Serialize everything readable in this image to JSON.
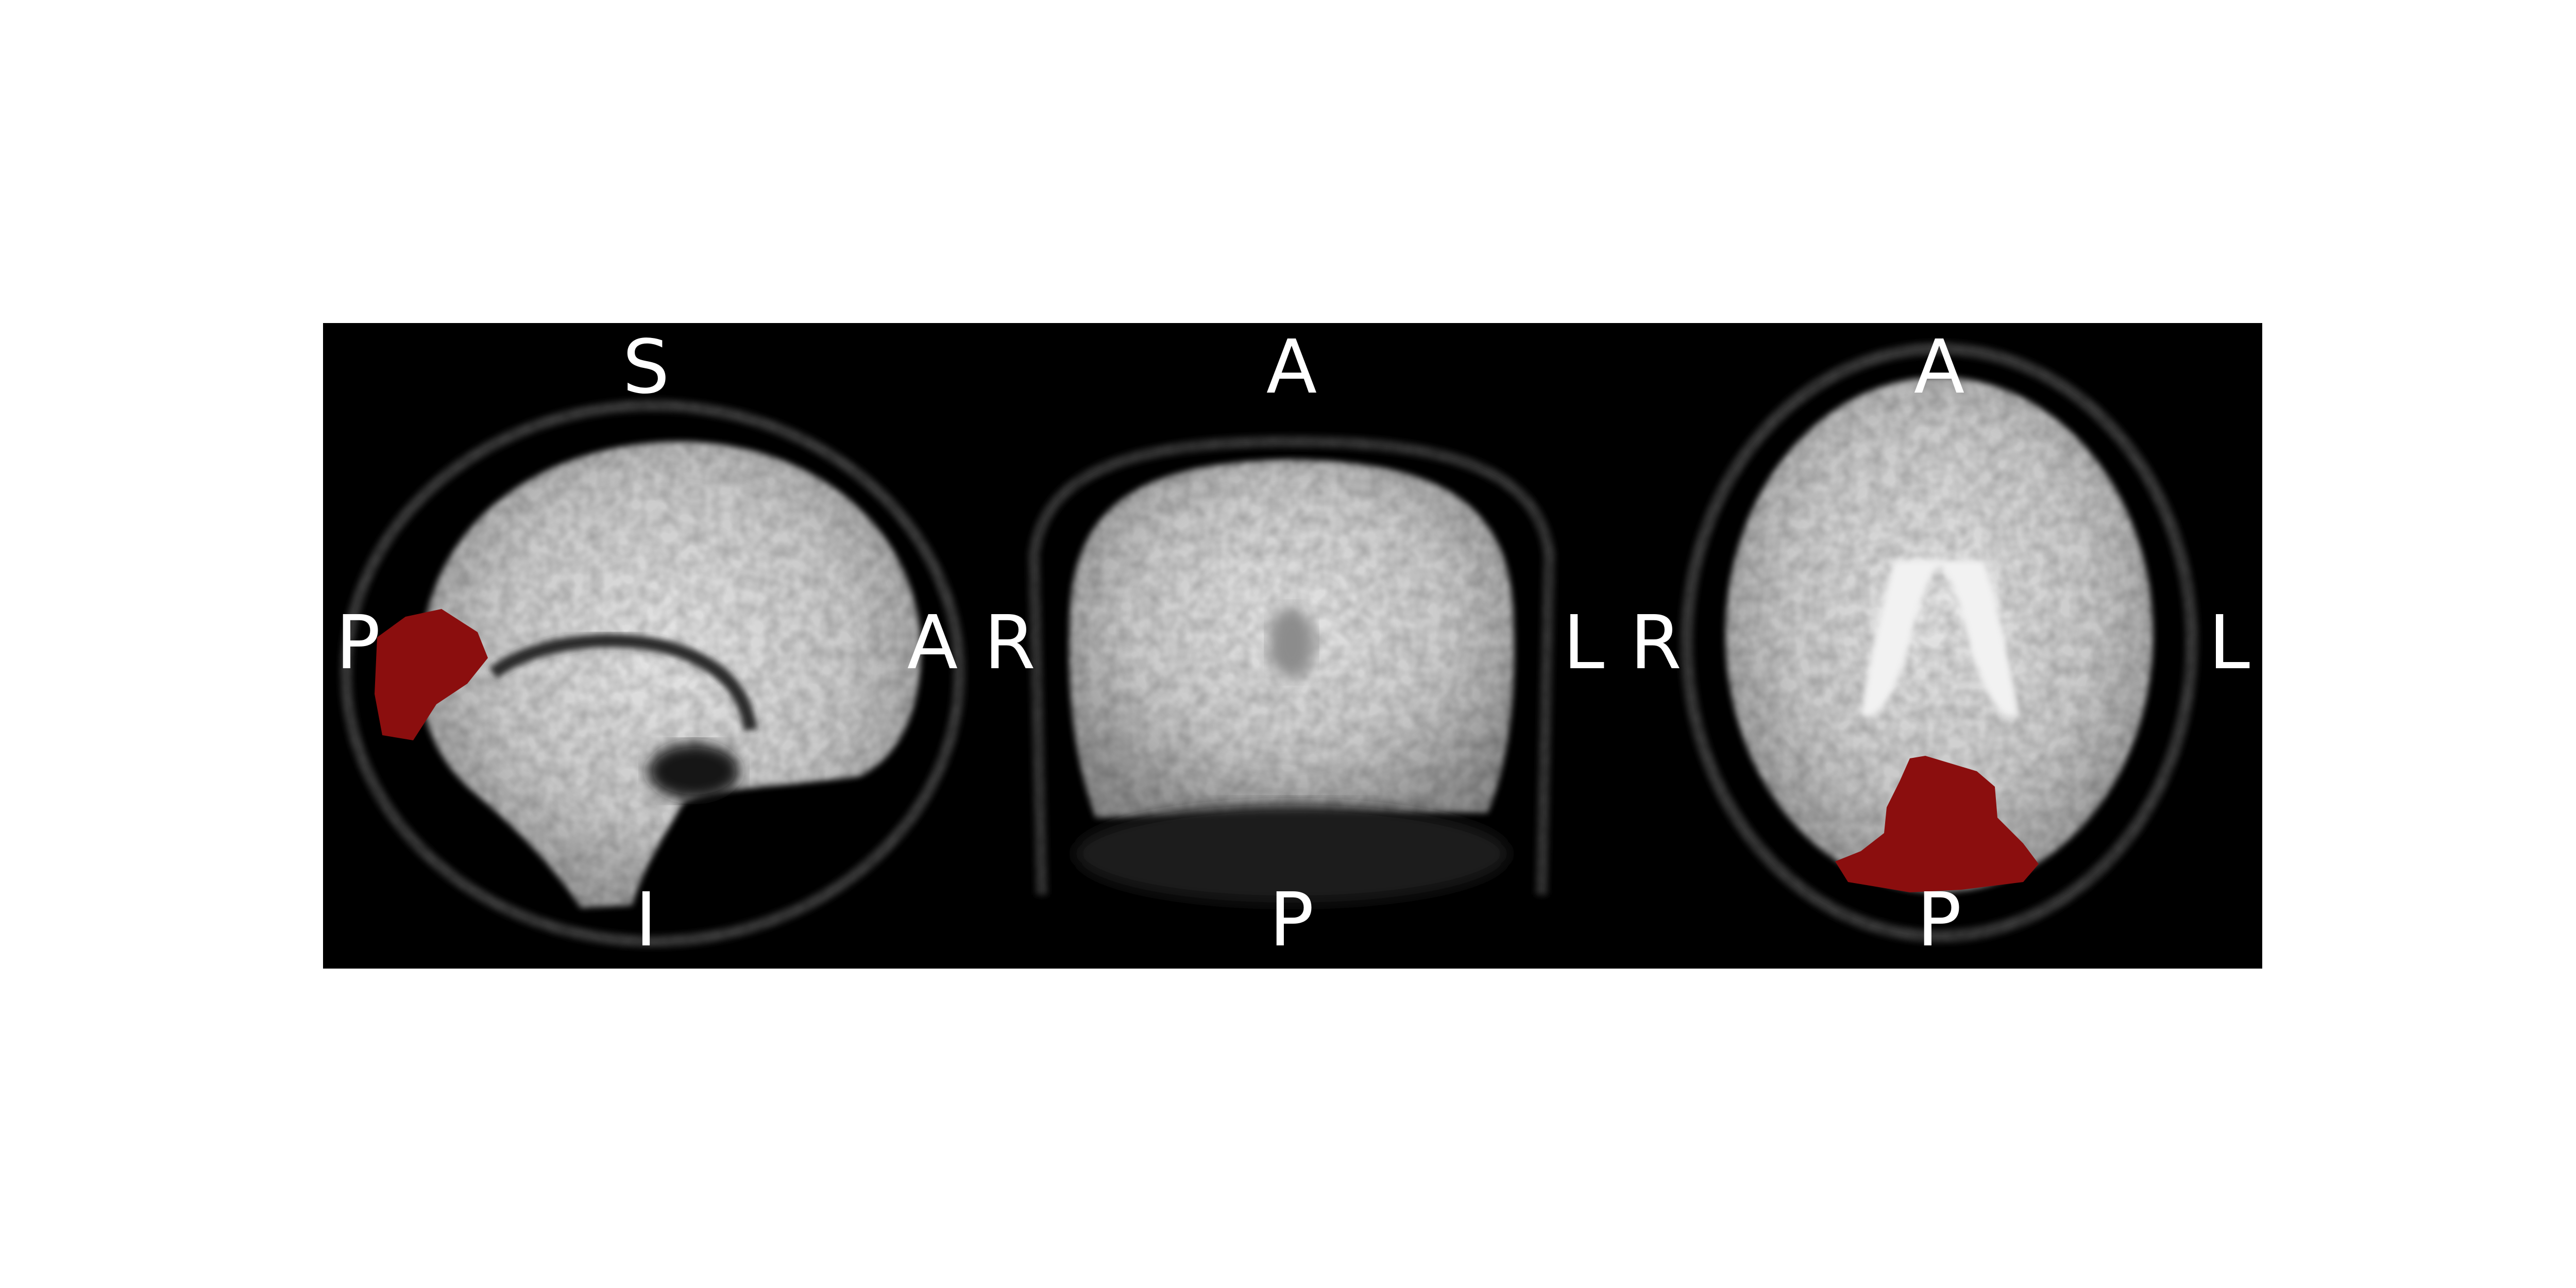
{
  "figure": {
    "background": "#000000",
    "overlay_color": "#8b0e0e",
    "label_color": "#ffffff",
    "views": [
      {
        "view": "sagittal",
        "labels": {
          "top": "S",
          "bottom": "I",
          "left": "P",
          "right": "A"
        },
        "overlay": true
      },
      {
        "view": "coronal",
        "labels": {
          "top": "A",
          "bottom": "P",
          "left": "R",
          "right": "L"
        },
        "overlay": false
      },
      {
        "view": "axial",
        "labels": {
          "top": "A",
          "bottom": "P",
          "left": "R",
          "right": "L"
        },
        "overlay": true
      }
    ]
  }
}
